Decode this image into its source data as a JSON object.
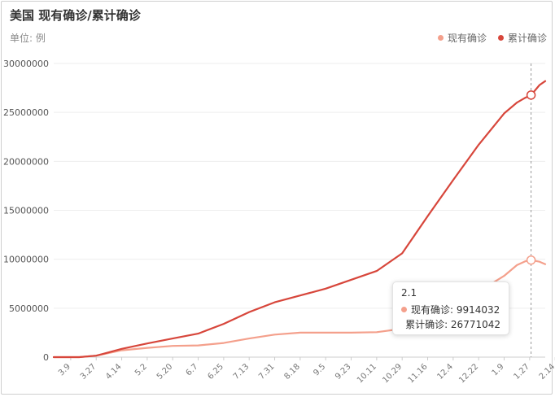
{
  "chart_data": {
    "type": "line",
    "title": "美国 现有确诊/累计确诊",
    "unit_label": "单位: 例",
    "ylim": [
      0,
      30000000
    ],
    "y_ticks": [
      "30000000",
      "25000000",
      "20000000",
      "15000000",
      "10000000",
      "5000000",
      "0"
    ],
    "y_tick_values": [
      30000000,
      25000000,
      20000000,
      15000000,
      10000000,
      5000000,
      0
    ],
    "x_ticks": [
      "3.9",
      "3.27",
      "4.14",
      "5.2",
      "5.20",
      "6.7",
      "6.25",
      "7.13",
      "7.31",
      "8.18",
      "9.5",
      "9.23",
      "10.11",
      "10.29",
      "11.16",
      "12.4",
      "12.22",
      "1.9",
      "1.27",
      "2.14"
    ],
    "x_range": [
      0,
      347
    ],
    "x_tick_index": [
      12,
      30,
      48,
      66,
      84,
      102,
      120,
      138,
      156,
      174,
      192,
      210,
      228,
      246,
      264,
      282,
      300,
      318,
      336,
      354
    ],
    "grid": true,
    "legend_position": "top-right",
    "series": [
      {
        "name": "现有确诊",
        "color": "#f4a08c",
        "x": [
          0,
          18,
          30,
          48,
          66,
          84,
          102,
          120,
          138,
          156,
          174,
          192,
          210,
          228,
          246,
          264,
          282,
          300,
          318,
          327,
          333,
          337,
          343,
          347
        ],
        "values": [
          0,
          0,
          150000,
          700000,
          950000,
          1150000,
          1200000,
          1450000,
          1900000,
          2300000,
          2500000,
          2500000,
          2500000,
          2550000,
          2900000,
          4100000,
          5300000,
          6700000,
          8300000,
          9400000,
          9800000,
          9914032,
          9750000,
          9500000
        ]
      },
      {
        "name": "累计确诊",
        "color": "#d7463b",
        "x": [
          0,
          18,
          30,
          48,
          66,
          84,
          102,
          120,
          138,
          156,
          174,
          192,
          210,
          228,
          246,
          264,
          282,
          300,
          318,
          327,
          333,
          337,
          343,
          347
        ],
        "values": [
          0,
          0,
          150000,
          850000,
          1400000,
          1900000,
          2400000,
          3400000,
          4600000,
          5600000,
          6300000,
          7000000,
          7900000,
          8800000,
          10600000,
          14400000,
          18100000,
          21700000,
          24900000,
          26000000,
          26500000,
          26771042,
          27800000,
          28200000
        ]
      }
    ],
    "tooltip": {
      "title": "2.1",
      "x": 337,
      "rows": [
        {
          "label": "现有确诊: 9914032",
          "color": "#f4a08c"
        },
        {
          "label": "累计确诊: 26771042",
          "color": "#d7463b"
        }
      ]
    }
  }
}
